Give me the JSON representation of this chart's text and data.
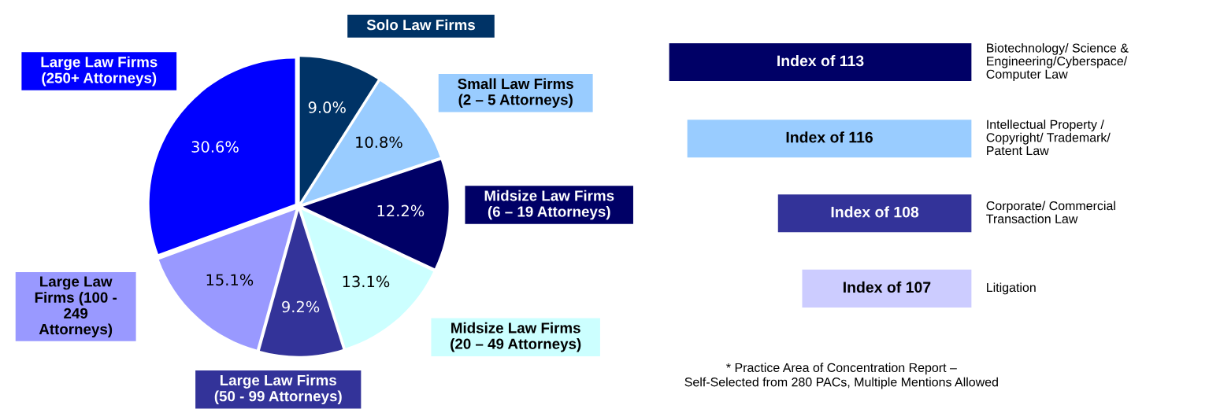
{
  "chart_data": [
    {
      "type": "pie",
      "categories": [
        "Solo Law Firms",
        "Small Law Firms\n(2 – 5 Attorneys)",
        "Midsize Law Firms\n(6 – 19 Attorneys)",
        "Midsize Law Firms\n(20 – 49 Attorneys)",
        "Large Law Firms\n(50 - 99 Attorneys)",
        "Large Law\nFirms (100 -\n249\nAttorneys)",
        "Large Law Firms\n(250+ Attorneys)"
      ],
      "values": [
        9.0,
        10.8,
        12.2,
        13.1,
        9.2,
        15.1,
        30.6
      ],
      "value_labels": [
        "9.0%",
        "10.8%",
        "12.2%",
        "13.1%",
        "9.2%",
        "15.1%",
        "30.6%"
      ],
      "colors": [
        "#003366",
        "#99ccff",
        "#000066",
        "#ccffff",
        "#333399",
        "#9999ff",
        "#0000ff"
      ]
    },
    {
      "type": "other",
      "categories": [
        "Index of 113",
        "Index of 116",
        "Index of 108",
        "Index of 107"
      ],
      "colors": [
        "#000066",
        "#99ccff",
        "#333399",
        "#ccccff"
      ],
      "annotations": [
        "Biotechnology/ Science &\nEngineering/Cyberspace/\nComputer Law",
        "Intellectual Property /\nCopyright/ Trademark/\nPatent Law",
        "Corporate/ Commercial\nTransaction Law",
        "Litigation",
        "* Practice Area of Concentration Report –\nSelf-Selected from 280 PACs, Multiple Mentions Allowed"
      ]
    }
  ]
}
